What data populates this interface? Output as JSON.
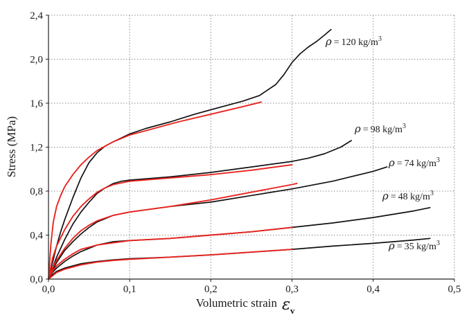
{
  "chart_data": {
    "type": "line",
    "xlabel": "Volumetric strain",
    "xlabel_symbol": "ε",
    "xlabel_subscript": "v",
    "ylabel": "Stress (MPa)",
    "xlim": [
      0,
      0.5
    ],
    "ylim": [
      0,
      2.4
    ],
    "x_ticks": [
      0.0,
      0.1,
      0.2,
      0.3,
      0.4,
      0.5
    ],
    "y_ticks": [
      0.0,
      0.4,
      0.8,
      1.2,
      1.6,
      2.0,
      2.4
    ],
    "x_tick_labels": [
      "0,0",
      "0,1",
      "0,2",
      "0,3",
      "0,4",
      "0,5"
    ],
    "y_tick_labels": [
      "0,0",
      "0,4",
      "0,8",
      "1,2",
      "1,6",
      "2,0",
      "2,4"
    ],
    "grid": "dotted",
    "colors": {
      "experimental": "#111111",
      "model": "#e8231f"
    },
    "series": [
      {
        "label": "120 kg/m",
        "label_sup": "3",
        "color": "#111111",
        "x": [
          0,
          0.005,
          0.01,
          0.015,
          0.02,
          0.03,
          0.04,
          0.05,
          0.06,
          0.07,
          0.08,
          0.1,
          0.12,
          0.15,
          0.18,
          0.2,
          0.22,
          0.24,
          0.26,
          0.28,
          0.29,
          0.3,
          0.31,
          0.32,
          0.33,
          0.34,
          0.348
        ],
        "y": [
          0,
          0.15,
          0.3,
          0.43,
          0.54,
          0.74,
          0.92,
          1.06,
          1.15,
          1.21,
          1.25,
          1.32,
          1.37,
          1.43,
          1.5,
          1.54,
          1.58,
          1.62,
          1.67,
          1.77,
          1.86,
          1.97,
          2.05,
          2.11,
          2.16,
          2.22,
          2.27
        ]
      },
      {
        "label": "120 kg/m",
        "label_sup": "3",
        "color": "#e8231f",
        "x": [
          0,
          0.003,
          0.006,
          0.01,
          0.015,
          0.02,
          0.03,
          0.04,
          0.05,
          0.06,
          0.08,
          0.1,
          0.13,
          0.16,
          0.2,
          0.24,
          0.262
        ],
        "y": [
          0,
          0.32,
          0.52,
          0.66,
          0.76,
          0.84,
          0.95,
          1.04,
          1.11,
          1.17,
          1.25,
          1.31,
          1.37,
          1.43,
          1.5,
          1.57,
          1.61
        ]
      },
      {
        "label": "98 kg/m",
        "label_sup": "3",
        "color": "#111111",
        "x": [
          0,
          0.005,
          0.01,
          0.015,
          0.02,
          0.03,
          0.04,
          0.05,
          0.06,
          0.07,
          0.08,
          0.09,
          0.1,
          0.15,
          0.2,
          0.25,
          0.3,
          0.32,
          0.34,
          0.36,
          0.373
        ],
        "y": [
          0,
          0.1,
          0.2,
          0.28,
          0.36,
          0.5,
          0.61,
          0.7,
          0.78,
          0.83,
          0.87,
          0.89,
          0.9,
          0.93,
          0.97,
          1.02,
          1.07,
          1.1,
          1.14,
          1.2,
          1.26
        ]
      },
      {
        "label": "98 kg/m",
        "label_sup": "3",
        "color": "#e8231f",
        "x": [
          0,
          0.005,
          0.01,
          0.02,
          0.03,
          0.04,
          0.05,
          0.06,
          0.07,
          0.08,
          0.1,
          0.15,
          0.2,
          0.25,
          0.3
        ],
        "y": [
          0,
          0.19,
          0.3,
          0.45,
          0.57,
          0.66,
          0.73,
          0.79,
          0.83,
          0.86,
          0.89,
          0.92,
          0.95,
          0.99,
          1.04
        ]
      },
      {
        "label": "74 kg/m",
        "label_sup": "3",
        "color": "#111111",
        "x": [
          0,
          0.005,
          0.01,
          0.02,
          0.03,
          0.04,
          0.05,
          0.06,
          0.07,
          0.08,
          0.1,
          0.15,
          0.2,
          0.25,
          0.3,
          0.35,
          0.4,
          0.417
        ],
        "y": [
          0,
          0.08,
          0.15,
          0.26,
          0.34,
          0.41,
          0.47,
          0.52,
          0.55,
          0.58,
          0.61,
          0.66,
          0.7,
          0.76,
          0.82,
          0.89,
          0.98,
          1.02
        ]
      },
      {
        "label": "74 kg/m",
        "label_sup": "3",
        "color": "#e8231f",
        "x": [
          0,
          0.005,
          0.01,
          0.02,
          0.03,
          0.04,
          0.05,
          0.06,
          0.08,
          0.1,
          0.15,
          0.2,
          0.25,
          0.3,
          0.306
        ],
        "y": [
          0,
          0.1,
          0.17,
          0.28,
          0.37,
          0.44,
          0.49,
          0.53,
          0.58,
          0.61,
          0.66,
          0.72,
          0.79,
          0.86,
          0.87
        ]
      },
      {
        "label": "48 kg/m",
        "label_sup": "3",
        "color": "#111111",
        "x": [
          0,
          0.005,
          0.01,
          0.02,
          0.03,
          0.04,
          0.05,
          0.06,
          0.08,
          0.1,
          0.15,
          0.2,
          0.25,
          0.3,
          0.35,
          0.4,
          0.45,
          0.47
        ],
        "y": [
          0,
          0.06,
          0.1,
          0.16,
          0.21,
          0.25,
          0.28,
          0.31,
          0.34,
          0.35,
          0.37,
          0.4,
          0.43,
          0.47,
          0.51,
          0.56,
          0.62,
          0.65
        ]
      },
      {
        "label": "48 kg/m",
        "label_sup": "3",
        "color": "#e8231f",
        "x": [
          0,
          0.005,
          0.01,
          0.02,
          0.03,
          0.04,
          0.05,
          0.06,
          0.08,
          0.1,
          0.15,
          0.2,
          0.25,
          0.3
        ],
        "y": [
          0,
          0.07,
          0.12,
          0.18,
          0.23,
          0.27,
          0.29,
          0.31,
          0.33,
          0.35,
          0.37,
          0.4,
          0.43,
          0.47
        ]
      },
      {
        "label": "35 kg/m",
        "label_sup": "3",
        "color": "#111111",
        "x": [
          0,
          0.005,
          0.01,
          0.02,
          0.03,
          0.04,
          0.05,
          0.06,
          0.08,
          0.1,
          0.15,
          0.2,
          0.25,
          0.3,
          0.35,
          0.4,
          0.45,
          0.47
        ],
        "y": [
          0,
          0.04,
          0.07,
          0.1,
          0.12,
          0.14,
          0.15,
          0.16,
          0.175,
          0.185,
          0.2,
          0.22,
          0.245,
          0.27,
          0.3,
          0.325,
          0.355,
          0.37
        ]
      },
      {
        "label": "35 kg/m",
        "label_sup": "3",
        "color": "#e8231f",
        "x": [
          0,
          0.01,
          0.02,
          0.04,
          0.06,
          0.08,
          0.1,
          0.15,
          0.2,
          0.25,
          0.3
        ],
        "y": [
          0,
          0.06,
          0.09,
          0.13,
          0.155,
          0.17,
          0.18,
          0.2,
          0.22,
          0.245,
          0.27
        ]
      }
    ],
    "annotations": [
      {
        "symbol": "ρ",
        "eq": "=",
        "text": "120 kg/m",
        "sup": "3"
      },
      {
        "symbol": "ρ",
        "eq": "=",
        "text": "98 kg/m",
        "sup": "3"
      },
      {
        "symbol": "ρ",
        "eq": "=",
        "text": "74 kg/m",
        "sup": "3"
      },
      {
        "symbol": "ρ",
        "eq": "=",
        "text": "48 kg/m",
        "sup": "3"
      },
      {
        "symbol": "ρ",
        "eq": "=",
        "text": "35 kg/m",
        "sup": "3"
      }
    ]
  }
}
